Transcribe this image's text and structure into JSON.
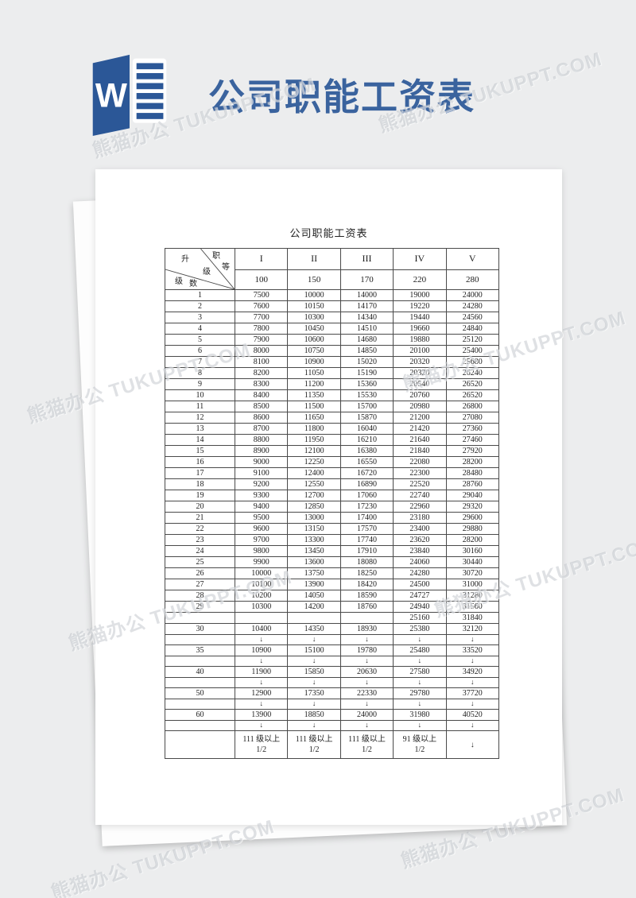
{
  "site": {
    "title": "公司职能工资表",
    "logo_letter": "W"
  },
  "watermark": {
    "text": "熊猫办公 TUKUPPT.COM"
  },
  "document": {
    "page_title": "公司职能工资表",
    "table": {
      "corner": {
        "sheng": "升",
        "zhi": "职",
        "deng": "等",
        "ji_mid": "级",
        "ji_bl": "级",
        "shu": "数"
      },
      "columns": [
        "I",
        "II",
        "III",
        "IV",
        "V"
      ],
      "base_row": [
        "100",
        "150",
        "170",
        "220",
        "280"
      ],
      "rows": [
        {
          "type": "data",
          "label": "1",
          "values": [
            "7500",
            "10000",
            "14000",
            "19000",
            "24000"
          ]
        },
        {
          "type": "data",
          "label": "2",
          "values": [
            "7600",
            "10150",
            "14170",
            "19220",
            "24280"
          ]
        },
        {
          "type": "data",
          "label": "3",
          "values": [
            "7700",
            "10300",
            "14340",
            "19440",
            "24560"
          ]
        },
        {
          "type": "data",
          "label": "4",
          "values": [
            "7800",
            "10450",
            "14510",
            "19660",
            "24840"
          ]
        },
        {
          "type": "data",
          "label": "5",
          "values": [
            "7900",
            "10600",
            "14680",
            "19880",
            "25120"
          ]
        },
        {
          "type": "data",
          "label": "6",
          "values": [
            "8000",
            "10750",
            "14850",
            "20100",
            "25400"
          ]
        },
        {
          "type": "data",
          "label": "7",
          "values": [
            "8100",
            "10900",
            "15020",
            "20320",
            "25680"
          ]
        },
        {
          "type": "data",
          "label": "8",
          "values": [
            "8200",
            "11050",
            "15190",
            "20320",
            "26240"
          ]
        },
        {
          "type": "data",
          "label": "9",
          "values": [
            "8300",
            "11200",
            "15360",
            "20540",
            "26520"
          ]
        },
        {
          "type": "data",
          "label": "10",
          "values": [
            "8400",
            "11350",
            "15530",
            "20760",
            "26520"
          ]
        },
        {
          "type": "data",
          "label": "11",
          "values": [
            "8500",
            "11500",
            "15700",
            "20980",
            "26800"
          ]
        },
        {
          "type": "data",
          "label": "12",
          "values": [
            "8600",
            "11650",
            "15870",
            "21200",
            "27080"
          ]
        },
        {
          "type": "data",
          "label": "13",
          "values": [
            "8700",
            "11800",
            "16040",
            "21420",
            "27360"
          ]
        },
        {
          "type": "data",
          "label": "14",
          "values": [
            "8800",
            "11950",
            "16210",
            "21640",
            "27460"
          ]
        },
        {
          "type": "data",
          "label": "15",
          "values": [
            "8900",
            "12100",
            "16380",
            "21840",
            "27920"
          ]
        },
        {
          "type": "data",
          "label": "16",
          "values": [
            "9000",
            "12250",
            "16550",
            "22080",
            "28200"
          ]
        },
        {
          "type": "data",
          "label": "17",
          "values": [
            "9100",
            "12400",
            "16720",
            "22300",
            "28480"
          ]
        },
        {
          "type": "data",
          "label": "18",
          "values": [
            "9200",
            "12550",
            "16890",
            "22520",
            "28760"
          ]
        },
        {
          "type": "data",
          "label": "19",
          "values": [
            "9300",
            "12700",
            "17060",
            "22740",
            "29040"
          ]
        },
        {
          "type": "data",
          "label": "20",
          "values": [
            "9400",
            "12850",
            "17230",
            "22960",
            "29320"
          ]
        },
        {
          "type": "data",
          "label": "21",
          "values": [
            "9500",
            "13000",
            "17400",
            "23180",
            "29600"
          ]
        },
        {
          "type": "data",
          "label": "22",
          "values": [
            "9600",
            "13150",
            "17570",
            "23400",
            "29880"
          ]
        },
        {
          "type": "data",
          "label": "23",
          "values": [
            "9700",
            "13300",
            "17740",
            "23620",
            "28200"
          ]
        },
        {
          "type": "data",
          "label": "24",
          "values": [
            "9800",
            "13450",
            "17910",
            "23840",
            "30160"
          ]
        },
        {
          "type": "data",
          "label": "25",
          "values": [
            "9900",
            "13600",
            "18080",
            "24060",
            "30440"
          ]
        },
        {
          "type": "data",
          "label": "26",
          "values": [
            "10000",
            "13750",
            "18250",
            "24280",
            "30720"
          ]
        },
        {
          "type": "data",
          "label": "27",
          "values": [
            "10100",
            "13900",
            "18420",
            "24500",
            "31000"
          ]
        },
        {
          "type": "data",
          "label": "28",
          "values": [
            "10200",
            "14050",
            "18590",
            "24727",
            "31280"
          ]
        },
        {
          "type": "data",
          "label": "29",
          "values": [
            "10300",
            "14200",
            "18760",
            "24940",
            "31560"
          ]
        },
        {
          "type": "data",
          "label": "",
          "values": [
            "",
            "",
            "",
            "25160",
            "31840"
          ]
        },
        {
          "type": "data",
          "label": "30",
          "values": [
            "10400",
            "14350",
            "18930",
            "25380",
            "32120"
          ]
        },
        {
          "type": "arrows",
          "label": "",
          "values": [
            "↓",
            "↓",
            "↓",
            "↓",
            "↓"
          ]
        },
        {
          "type": "data",
          "label": "35",
          "values": [
            "10900",
            "15100",
            "19780",
            "25480",
            "33520"
          ]
        },
        {
          "type": "arrows",
          "label": "",
          "values": [
            "↓",
            "↓",
            "↓",
            "↓",
            "↓"
          ]
        },
        {
          "type": "data",
          "label": "40",
          "values": [
            "11900",
            "15850",
            "20630",
            "27580",
            "34920"
          ]
        },
        {
          "type": "arrows",
          "label": "",
          "values": [
            "↓",
            "↓",
            "↓",
            "↓",
            "↓"
          ]
        },
        {
          "type": "data",
          "label": "50",
          "values": [
            "12900",
            "17350",
            "22330",
            "29780",
            "37720"
          ]
        },
        {
          "type": "arrows",
          "label": "",
          "values": [
            "↓",
            "↓",
            "↓",
            "↓",
            "↓"
          ]
        },
        {
          "type": "data",
          "label": "60",
          "values": [
            "13900",
            "18850",
            "24000",
            "31980",
            "40520"
          ]
        },
        {
          "type": "arrows",
          "label": "",
          "values": [
            "↓",
            "↓",
            "↓",
            "↓",
            "↓"
          ]
        },
        {
          "type": "footer",
          "label": "",
          "values": [
            "111 级以上\n1/2",
            "111 级以上\n1/2",
            "111 级以上\n1/2",
            "91 级以上\n1/2",
            "↓"
          ]
        }
      ]
    }
  }
}
